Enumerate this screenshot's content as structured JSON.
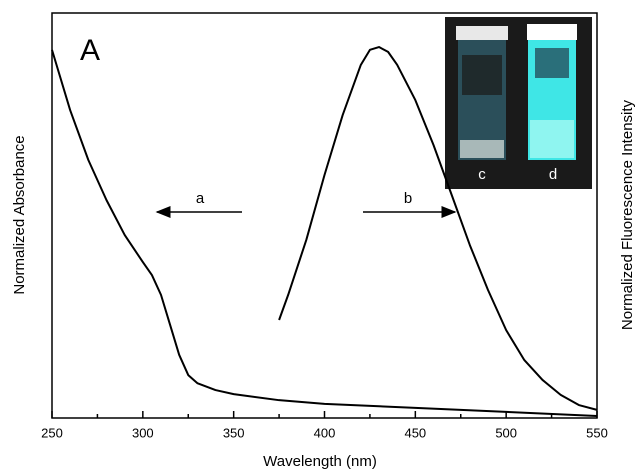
{
  "chart_data": {
    "type": "line",
    "annotations": {
      "panel": "A",
      "absorbance_arrow": "a",
      "fluorescence_arrow": "b",
      "inset_left": "c",
      "inset_right": "d"
    },
    "xlabel": "Wavelength (nm)",
    "ylabel": "Normalized Absorbance",
    "y2label": "Normalized Fluorescence Intensity",
    "xlim": [
      250,
      550
    ],
    "xticks": [
      250,
      300,
      350,
      400,
      450,
      500,
      550
    ],
    "xminor_ticks": [
      275,
      325,
      375,
      425,
      475,
      525
    ],
    "ylim": [
      0,
      1
    ],
    "series": [
      {
        "color": "#000000",
        "x": [
          250,
          260,
          270,
          280,
          290,
          300,
          305,
          310,
          315,
          320,
          325,
          330,
          340,
          350,
          375,
          400,
          450,
          500,
          550
        ],
        "values": [
          0.909,
          0.76,
          0.637,
          0.538,
          0.452,
          0.385,
          0.353,
          0.304,
          0.23,
          0.156,
          0.106,
          0.086,
          0.069,
          0.059,
          0.044,
          0.035,
          0.025,
          0.015,
          0.005
        ]
      },
      {
        "color": "#000000",
        "x": [
          375,
          380,
          390,
          400,
          410,
          420,
          425,
          430,
          435,
          440,
          450,
          460,
          470,
          480,
          490,
          500,
          510,
          520,
          530,
          540,
          550
        ],
        "values": [
          0.242,
          0.304,
          0.44,
          0.6,
          0.748,
          0.872,
          0.909,
          0.916,
          0.904,
          0.872,
          0.785,
          0.674,
          0.551,
          0.427,
          0.316,
          0.217,
          0.143,
          0.094,
          0.057,
          0.032,
          0.02
        ]
      }
    ]
  }
}
